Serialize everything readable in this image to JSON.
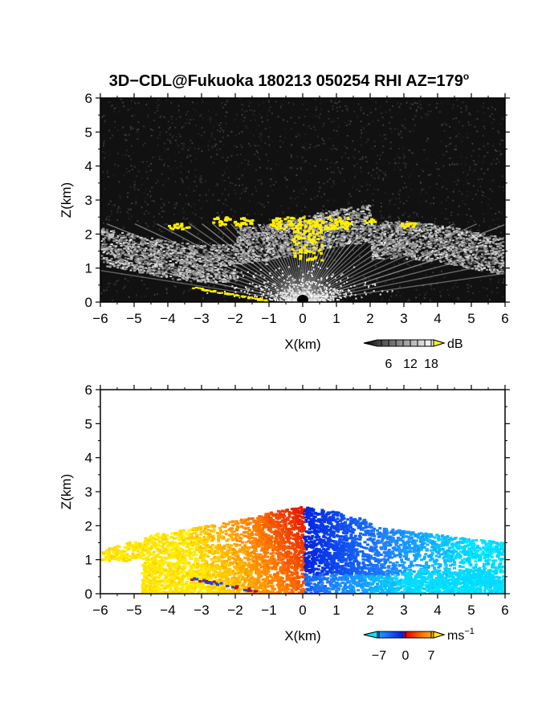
{
  "title": "3D−CDL@Fukuoka 180213 050254 RHI AZ=179",
  "title_superscript": "o",
  "chart_data": [
    {
      "type": "heatmap",
      "name": "power",
      "xlabel": "X(km)",
      "ylabel": "Z(km)",
      "xlim": [
        -6,
        6
      ],
      "ylim": [
        0,
        6
      ],
      "xticks": [
        "−6",
        "−5",
        "−4",
        "−3",
        "−2",
        "−1",
        "0",
        "1",
        "2",
        "3",
        "4",
        "5",
        "6"
      ],
      "yticks": [
        "0",
        "1",
        "2",
        "3",
        "4",
        "5",
        "6"
      ],
      "background": "#111111",
      "colorbar": {
        "unit": "dB",
        "tick_labels": [
          "6",
          "12",
          "18"
        ],
        "colors": [
          "#000000",
          "#ffffff",
          "#ffff00"
        ]
      }
    },
    {
      "type": "heatmap",
      "name": "doppler_velocity",
      "xlabel": "X(km)",
      "ylabel": "Z(km)",
      "xlim": [
        -6,
        6
      ],
      "ylim": [
        0,
        6
      ],
      "xticks": [
        "−6",
        "−5",
        "−4",
        "−3",
        "−2",
        "−1",
        "0",
        "1",
        "2",
        "3",
        "4",
        "5",
        "6"
      ],
      "yticks": [
        "0",
        "1",
        "2",
        "3",
        "4",
        "5",
        "6"
      ],
      "background": "#ffffff",
      "colorbar": {
        "unit": "ms",
        "unit_superscript": "−1",
        "tick_labels": [
          "−7",
          "0",
          "7"
        ],
        "colors": [
          "#00e0ff",
          "#0040ff",
          "#ff2000",
          "#ffee00"
        ]
      }
    }
  ]
}
